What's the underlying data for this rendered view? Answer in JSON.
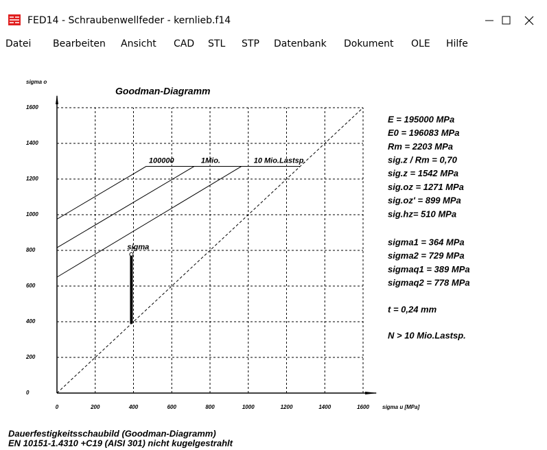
{
  "window": {
    "title": "FED14 - Schraubenwellfeder  -  kernlieb.f14"
  },
  "menu": [
    "Datei",
    "Bearbeiten",
    "Ansicht",
    "CAD",
    "STL",
    "STP",
    "Datenbank",
    "Dokument",
    "OLE",
    "Hilfe"
  ],
  "chart_data": {
    "type": "line",
    "title": "Goodman-Diagramm",
    "y_label": "sigma o",
    "x_label": "sigma u [MPa]",
    "xlim": [
      0,
      1600
    ],
    "ylim": [
      0,
      1600
    ],
    "xticks": [
      0,
      200,
      400,
      600,
      800,
      1000,
      1200,
      1400,
      1600
    ],
    "yticks": [
      0,
      200,
      400,
      600,
      800,
      1000,
      1200,
      1400,
      1600
    ],
    "grid": true,
    "series": [
      {
        "name": "100000",
        "color": "#000000",
        "x": [
          0,
          466,
          1271
        ],
        "values": [
          975,
          1271,
          1271
        ]
      },
      {
        "name": "1Mio.",
        "color": "#000000",
        "x": [
          0,
          717,
          1271
        ],
        "values": [
          815,
          1271,
          1271
        ]
      },
      {
        "name": "10 Mio.Lastsp.",
        "color": "#000000",
        "x": [
          0,
          964,
          1271
        ],
        "values": [
          650,
          1271,
          1271
        ]
      }
    ],
    "diagonal": {
      "x": [
        0,
        1600
      ],
      "values": [
        0,
        1600
      ]
    },
    "sigma": {
      "name": "sigma",
      "color": "#000000",
      "x": [
        389,
        389
      ],
      "values": [
        389,
        778
      ]
    }
  },
  "info": [
    [
      "E = 195000 MPa",
      "E0 = 196083 MPa",
      "Rm = 2203 MPa",
      "sig.z / Rm = 0,70",
      "sig.z = 1542 MPa",
      "sig.oz = 1271 MPa",
      "sig.oz' =  899 MPa",
      "sig.hz=  510 MPa"
    ],
    [
      "sigma1 =  364 MPa",
      "sigma2 =  729 MPa",
      "sigmaq1 =  389 MPa",
      "sigmaq2 =  778 MPa"
    ],
    [
      "t  = 0,24 mm"
    ],
    [
      "N > 10 Mio.Lastsp."
    ]
  ],
  "footer": [
    "Dauerfestigkeitsschaubild (Goodman-Diagramm)",
    "EN 10151-1.4310 +C19 (AISI 301) nicht kugelgestrahlt"
  ]
}
